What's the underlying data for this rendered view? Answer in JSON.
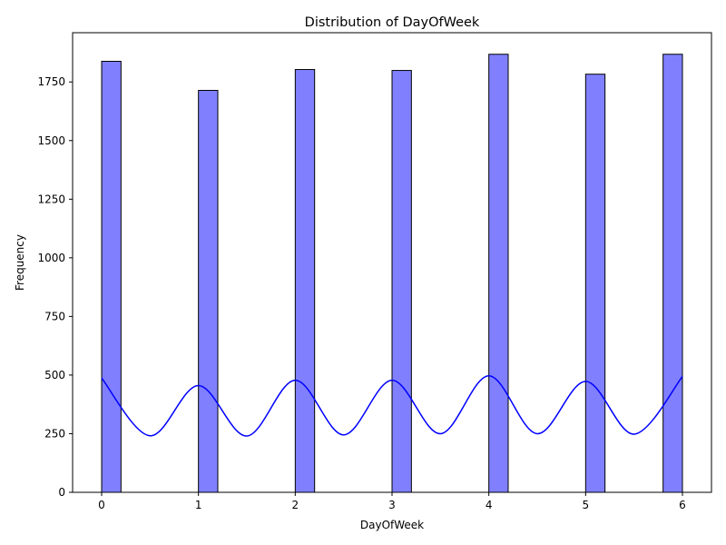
{
  "chart_data": {
    "type": "bar",
    "title": "Distribution of DayOfWeek",
    "xlabel": "DayOfWeek",
    "ylabel": "Frequency",
    "xlim": [
      -0.3,
      6.3
    ],
    "ylim": [
      0,
      1960
    ],
    "xticks": [
      0,
      1,
      2,
      3,
      4,
      5,
      6
    ],
    "yticks": [
      0,
      250,
      500,
      750,
      1000,
      1250,
      1500,
      1750
    ],
    "grid": false,
    "bar_color": "#8080ff",
    "bar_edge_color": "#000000",
    "kde_color": "#0000ff",
    "bins": [
      {
        "x0": 0.0,
        "x1": 0.2,
        "count": 1838
      },
      {
        "x0": 1.0,
        "x1": 1.2,
        "count": 1714
      },
      {
        "x0": 2.0,
        "x1": 2.2,
        "count": 1803
      },
      {
        "x0": 3.0,
        "x1": 3.2,
        "count": 1799
      },
      {
        "x0": 4.0,
        "x1": 4.2,
        "count": 1868
      },
      {
        "x0": 5.0,
        "x1": 5.2,
        "count": 1783
      },
      {
        "x0": 5.8,
        "x1": 6.0,
        "count": 1868
      }
    ],
    "kde": {
      "x": [
        0,
        0.5,
        1,
        1.5,
        2,
        2.5,
        3,
        3.5,
        4,
        4.5,
        5,
        5.5,
        6
      ],
      "y": [
        487,
        241,
        455,
        240,
        478,
        245,
        478,
        250,
        497,
        250,
        473,
        248,
        494
      ]
    }
  }
}
